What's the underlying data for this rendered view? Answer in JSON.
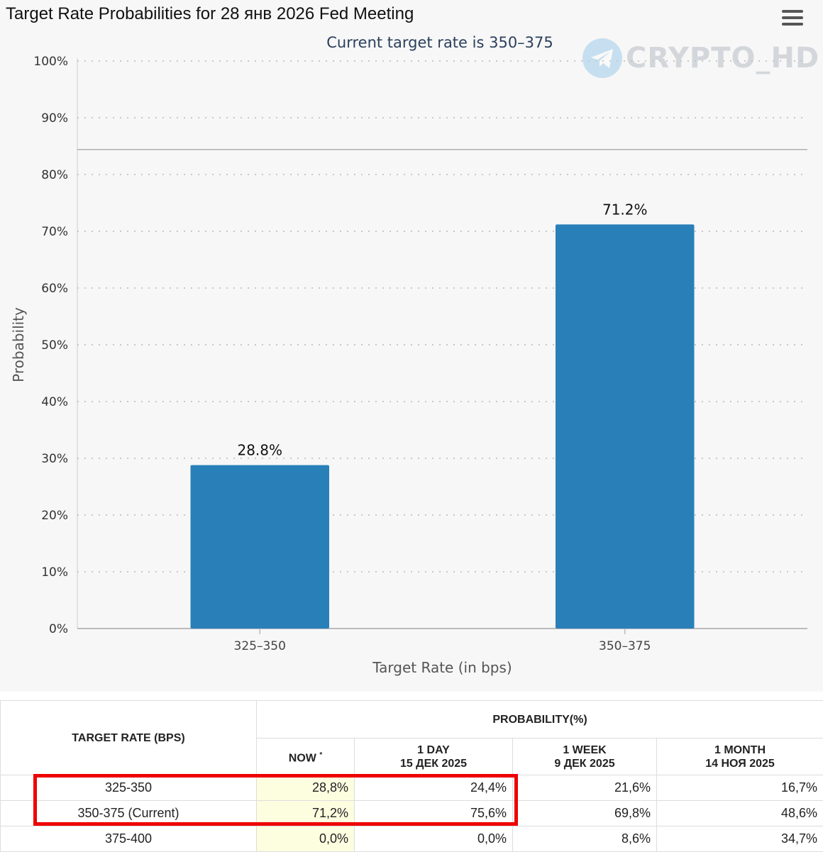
{
  "title": "Target Rate Probabilities for 28 янв 2026 Fed Meeting",
  "subtitle": "Current target rate is 350–375",
  "watermark": "CRYPTO_HD",
  "chart_data": {
    "type": "bar",
    "categories": [
      "325–350",
      "350–375"
    ],
    "values": [
      28.8,
      71.2
    ],
    "data_labels": [
      "28.8%",
      "71.2%"
    ],
    "ylabel": "Probability",
    "xlabel": "Target Rate (in bps)",
    "ylim": [
      0,
      100
    ],
    "yticks": [
      "0%",
      "10%",
      "20%",
      "30%",
      "40%",
      "50%",
      "60%",
      "70%",
      "80%",
      "90%",
      "100%"
    ],
    "bar_color": "#2980b9",
    "grid": "dotted horizontal",
    "reference_line": 84.4
  },
  "table": {
    "head": {
      "target_rate": "TARGET RATE (BPS)",
      "probability": "PROBABILITY(%)",
      "now": "NOW",
      "now_mark": "*",
      "day_label": "1 DAY",
      "day_date": "15 ДЕК 2025",
      "week_label": "1 WEEK",
      "week_date": "9 ДЕК 2025",
      "month_label": "1 MONTH",
      "month_date": "14 НОЯ 2025"
    },
    "rows": [
      {
        "rate": "325-350",
        "now": "28,8%",
        "day": "24,4%",
        "week": "21,6%",
        "month": "16,7%"
      },
      {
        "rate": "350-375 (Current)",
        "now": "71,2%",
        "day": "75,6%",
        "week": "69,8%",
        "month": "48,6%"
      },
      {
        "rate": "375-400",
        "now": "0,0%",
        "day": "0,0%",
        "week": "8,6%",
        "month": "34,7%"
      }
    ]
  }
}
